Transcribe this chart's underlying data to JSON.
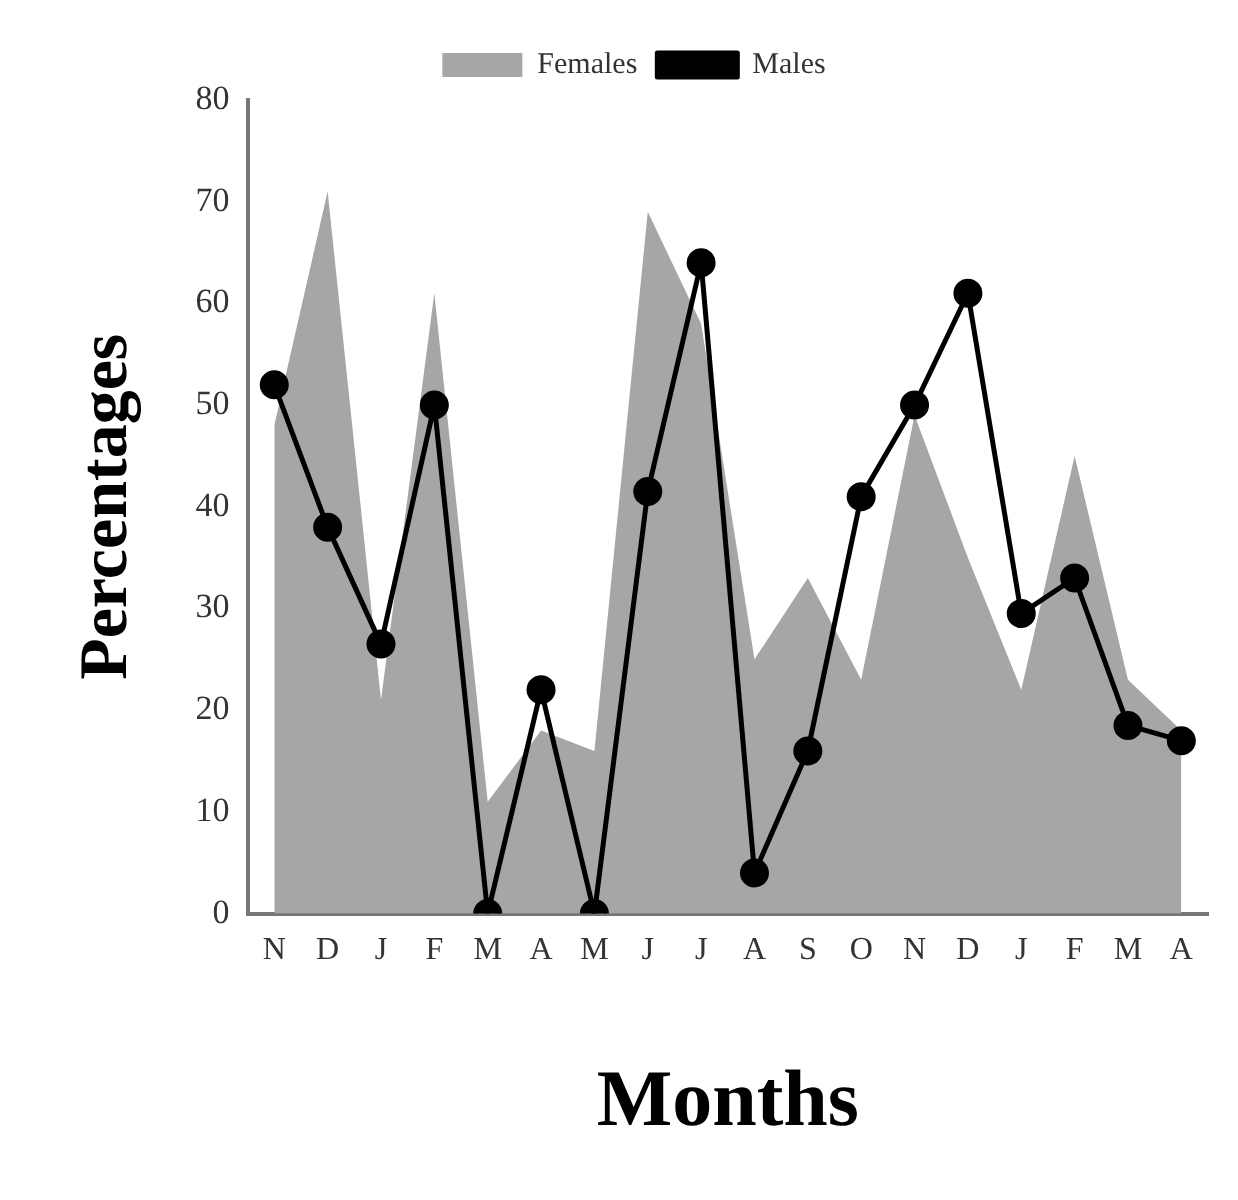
{
  "chart_data": {
    "type": "line",
    "xlabel": "Months",
    "ylabel": "Percentages",
    "categories": [
      "N",
      "D",
      "J",
      "F",
      "M",
      "A",
      "M",
      "J",
      "J",
      "A",
      "S",
      "O",
      "N",
      "D",
      "J",
      "F",
      "M",
      "A"
    ],
    "series": [
      {
        "name": "Females",
        "type": "area",
        "color": "#a6a6a6",
        "values": [
          48,
          71,
          21,
          61,
          11,
          18,
          16,
          69,
          58,
          25,
          33,
          23,
          49,
          35,
          22,
          45,
          23,
          18
        ]
      },
      {
        "name": "Males",
        "color": "#000000",
        "marker": "circle",
        "values": [
          52,
          38,
          26.5,
          50,
          0,
          22,
          0,
          41.5,
          64,
          4,
          16,
          41,
          50,
          61,
          29.5,
          33,
          18.5,
          17
        ]
      }
    ],
    "ylim": [
      0,
      80
    ],
    "yticks": [
      0,
      10,
      20,
      30,
      40,
      50,
      60,
      70,
      80
    ],
    "grid": false,
    "legend": "top"
  }
}
